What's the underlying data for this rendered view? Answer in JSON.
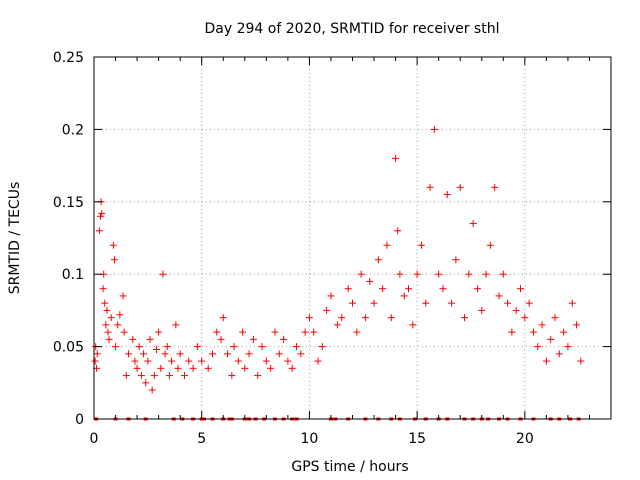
{
  "chart_data": {
    "type": "scatter",
    "title": "Day 294 of 2020, SRMTID for receiver sthl",
    "xlabel": "GPS time / hours",
    "ylabel": "SRMTID / TECUs",
    "xlim": [
      0,
      24
    ],
    "ylim": [
      0,
      0.25
    ],
    "grid": true,
    "marker": "+",
    "color": "#ff0000",
    "x_ticks": [
      0,
      5,
      10,
      15,
      20
    ],
    "x_tick_labels": [
      "0",
      "5",
      "10",
      "15",
      "20"
    ],
    "y_ticks": [
      0,
      0.05,
      0.1,
      0.15,
      0.2,
      0.25
    ],
    "y_tick_labels": [
      "0",
      "0.05",
      "0.1",
      "0.15",
      "0.2",
      "0.25"
    ],
    "series": [
      {
        "name": "SRMTID",
        "points": [
          [
            0.05,
            0.04
          ],
          [
            0.08,
            0.05
          ],
          [
            0.12,
            0.035
          ],
          [
            0.15,
            0.045
          ],
          [
            0.25,
            0.13
          ],
          [
            0.3,
            0.14
          ],
          [
            0.33,
            0.15
          ],
          [
            0.36,
            0.142
          ],
          [
            0.42,
            0.09
          ],
          [
            0.45,
            0.1
          ],
          [
            0.5,
            0.08
          ],
          [
            0.55,
            0.065
          ],
          [
            0.6,
            0.075
          ],
          [
            0.65,
            0.06
          ],
          [
            0.7,
            0.055
          ],
          [
            0.8,
            0.07
          ],
          [
            0.9,
            0.12
          ],
          [
            0.95,
            0.11
          ],
          [
            1.0,
            0.05
          ],
          [
            1.1,
            0.065
          ],
          [
            1.2,
            0.072
          ],
          [
            1.35,
            0.085
          ],
          [
            1.4,
            0.06
          ],
          [
            1.5,
            0.03
          ],
          [
            1.6,
            0.045
          ],
          [
            1.8,
            0.055
          ],
          [
            1.9,
            0.04
          ],
          [
            2.0,
            0.035
          ],
          [
            2.1,
            0.05
          ],
          [
            2.2,
            0.03
          ],
          [
            2.3,
            0.045
          ],
          [
            2.4,
            0.025
          ],
          [
            2.5,
            0.04
          ],
          [
            2.6,
            0.055
          ],
          [
            2.7,
            0.02
          ],
          [
            2.8,
            0.03
          ],
          [
            2.9,
            0.048
          ],
          [
            3.0,
            0.06
          ],
          [
            3.1,
            0.035
          ],
          [
            3.2,
            0.1
          ],
          [
            3.3,
            0.045
          ],
          [
            3.4,
            0.05
          ],
          [
            3.5,
            0.03
          ],
          [
            3.6,
            0.04
          ],
          [
            3.8,
            0.065
          ],
          [
            3.9,
            0.035
          ],
          [
            4.0,
            0.045
          ],
          [
            4.2,
            0.03
          ],
          [
            4.4,
            0.04
          ],
          [
            4.6,
            0.035
          ],
          [
            4.8,
            0.05
          ],
          [
            5.0,
            0.04
          ],
          [
            5.3,
            0.035
          ],
          [
            5.5,
            0.045
          ],
          [
            5.7,
            0.06
          ],
          [
            5.9,
            0.055
          ],
          [
            6.0,
            0.07
          ],
          [
            6.2,
            0.045
          ],
          [
            6.4,
            0.03
          ],
          [
            6.5,
            0.05
          ],
          [
            6.7,
            0.04
          ],
          [
            6.9,
            0.06
          ],
          [
            7.0,
            0.035
          ],
          [
            7.2,
            0.045
          ],
          [
            7.4,
            0.055
          ],
          [
            7.6,
            0.03
          ],
          [
            7.8,
            0.05
          ],
          [
            8.0,
            0.04
          ],
          [
            8.2,
            0.035
          ],
          [
            8.4,
            0.06
          ],
          [
            8.6,
            0.045
          ],
          [
            8.8,
            0.055
          ],
          [
            9.0,
            0.04
          ],
          [
            9.2,
            0.035
          ],
          [
            9.4,
            0.05
          ],
          [
            9.6,
            0.045
          ],
          [
            9.8,
            0.06
          ],
          [
            10.0,
            0.07
          ],
          [
            10.2,
            0.06
          ],
          [
            10.4,
            0.04
          ],
          [
            10.6,
            0.05
          ],
          [
            10.8,
            0.075
          ],
          [
            11.0,
            0.085
          ],
          [
            11.3,
            0.065
          ],
          [
            11.5,
            0.07
          ],
          [
            11.8,
            0.09
          ],
          [
            12.0,
            0.08
          ],
          [
            12.2,
            0.06
          ],
          [
            12.4,
            0.1
          ],
          [
            12.6,
            0.07
          ],
          [
            12.8,
            0.095
          ],
          [
            13.0,
            0.08
          ],
          [
            13.2,
            0.11
          ],
          [
            13.4,
            0.09
          ],
          [
            13.6,
            0.12
          ],
          [
            13.8,
            0.07
          ],
          [
            14.0,
            0.18
          ],
          [
            14.1,
            0.13
          ],
          [
            14.2,
            0.1
          ],
          [
            14.4,
            0.085
          ],
          [
            14.6,
            0.09
          ],
          [
            14.8,
            0.065
          ],
          [
            15.0,
            0.1
          ],
          [
            15.2,
            0.12
          ],
          [
            15.4,
            0.08
          ],
          [
            15.6,
            0.16
          ],
          [
            15.8,
            0.2
          ],
          [
            16.0,
            0.1
          ],
          [
            16.2,
            0.09
          ],
          [
            16.4,
            0.155
          ],
          [
            16.6,
            0.08
          ],
          [
            16.8,
            0.11
          ],
          [
            17.0,
            0.16
          ],
          [
            17.2,
            0.07
          ],
          [
            17.4,
            0.1
          ],
          [
            17.6,
            0.135
          ],
          [
            17.8,
            0.09
          ],
          [
            18.0,
            0.075
          ],
          [
            18.2,
            0.1
          ],
          [
            18.4,
            0.12
          ],
          [
            18.6,
            0.16
          ],
          [
            18.8,
            0.085
          ],
          [
            19.0,
            0.1
          ],
          [
            19.2,
            0.08
          ],
          [
            19.4,
            0.06
          ],
          [
            19.6,
            0.075
          ],
          [
            19.8,
            0.09
          ],
          [
            20.0,
            0.07
          ],
          [
            20.2,
            0.08
          ],
          [
            20.4,
            0.06
          ],
          [
            20.6,
            0.05
          ],
          [
            20.8,
            0.065
          ],
          [
            21.0,
            0.04
          ],
          [
            21.2,
            0.055
          ],
          [
            21.4,
            0.07
          ],
          [
            21.6,
            0.045
          ],
          [
            21.8,
            0.06
          ],
          [
            22.0,
            0.05
          ],
          [
            22.2,
            0.08
          ],
          [
            22.4,
            0.065
          ],
          [
            22.6,
            0.04
          ]
        ],
        "zero_x": [
          0.1,
          1.0,
          1.6,
          2.4,
          3.7,
          4.1,
          4.6,
          5.0,
          5.1,
          5.5,
          6.0,
          6.3,
          6.4,
          7.0,
          7.2,
          7.5,
          7.9,
          8.4,
          8.8,
          9.2,
          9.4,
          11.0,
          11.2,
          11.8,
          12.6,
          13.2,
          13.8,
          14.2,
          14.9,
          15.4,
          16.0,
          16.4,
          17.2,
          17.6,
          18.0,
          18.3,
          18.8,
          19.2,
          19.8,
          20.4,
          21.2,
          21.6,
          22.1,
          22.5
        ]
      }
    ]
  }
}
